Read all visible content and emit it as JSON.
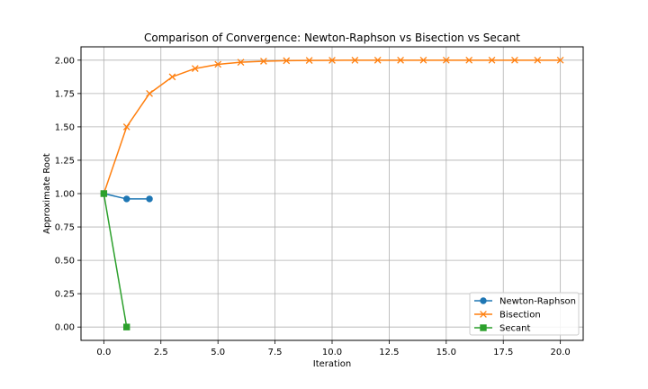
{
  "chart_data": {
    "type": "line",
    "title": "Comparison of Convergence: Newton-Raphson vs Bisection vs Secant",
    "xlabel": "Iteration",
    "ylabel": "Approximate Root",
    "xlim": [
      -1.0,
      21.0
    ],
    "ylim": [
      -0.1,
      2.1
    ],
    "xticks": [
      0.0,
      2.5,
      5.0,
      7.5,
      10.0,
      12.5,
      15.0,
      17.5,
      20.0
    ],
    "xtick_labels": [
      "0.0",
      "2.5",
      "5.0",
      "7.5",
      "10.0",
      "12.5",
      "15.0",
      "17.5",
      "20.0"
    ],
    "yticks": [
      0.0,
      0.25,
      0.5,
      0.75,
      1.0,
      1.25,
      1.5,
      1.75,
      2.0
    ],
    "ytick_labels": [
      "0.00",
      "0.25",
      "0.50",
      "0.75",
      "1.00",
      "1.25",
      "1.50",
      "1.75",
      "2.00"
    ],
    "grid": true,
    "legend_position": "lower-right",
    "series": [
      {
        "name": "Newton-Raphson",
        "color": "#1f77b4",
        "marker": "circle",
        "x": [
          0,
          1,
          2
        ],
        "y": [
          1.0,
          0.96,
          0.96
        ]
      },
      {
        "name": "Bisection",
        "color": "#ff7f0e",
        "marker": "x",
        "x": [
          0,
          1,
          2,
          3,
          4,
          5,
          6,
          7,
          8,
          9,
          10,
          11,
          12,
          13,
          14,
          15,
          16,
          17,
          18,
          19,
          20
        ],
        "y": [
          1.0,
          1.5,
          1.75,
          1.875,
          1.9375,
          1.96875,
          1.984375,
          1.9921875,
          1.99609375,
          1.998046875,
          1.9990234375,
          1.99951171875,
          1.999755859375,
          1.9998779296875,
          1.99993896484375,
          1.999969482421875,
          1.9999847412109375,
          1.9999923706054688,
          1.9999961853027344,
          1.9999980926513672,
          1.9999990463256836
        ]
      },
      {
        "name": "Secant",
        "color": "#2ca02c",
        "marker": "square",
        "x": [
          0,
          1
        ],
        "y": [
          1.0,
          0.0
        ]
      }
    ]
  }
}
